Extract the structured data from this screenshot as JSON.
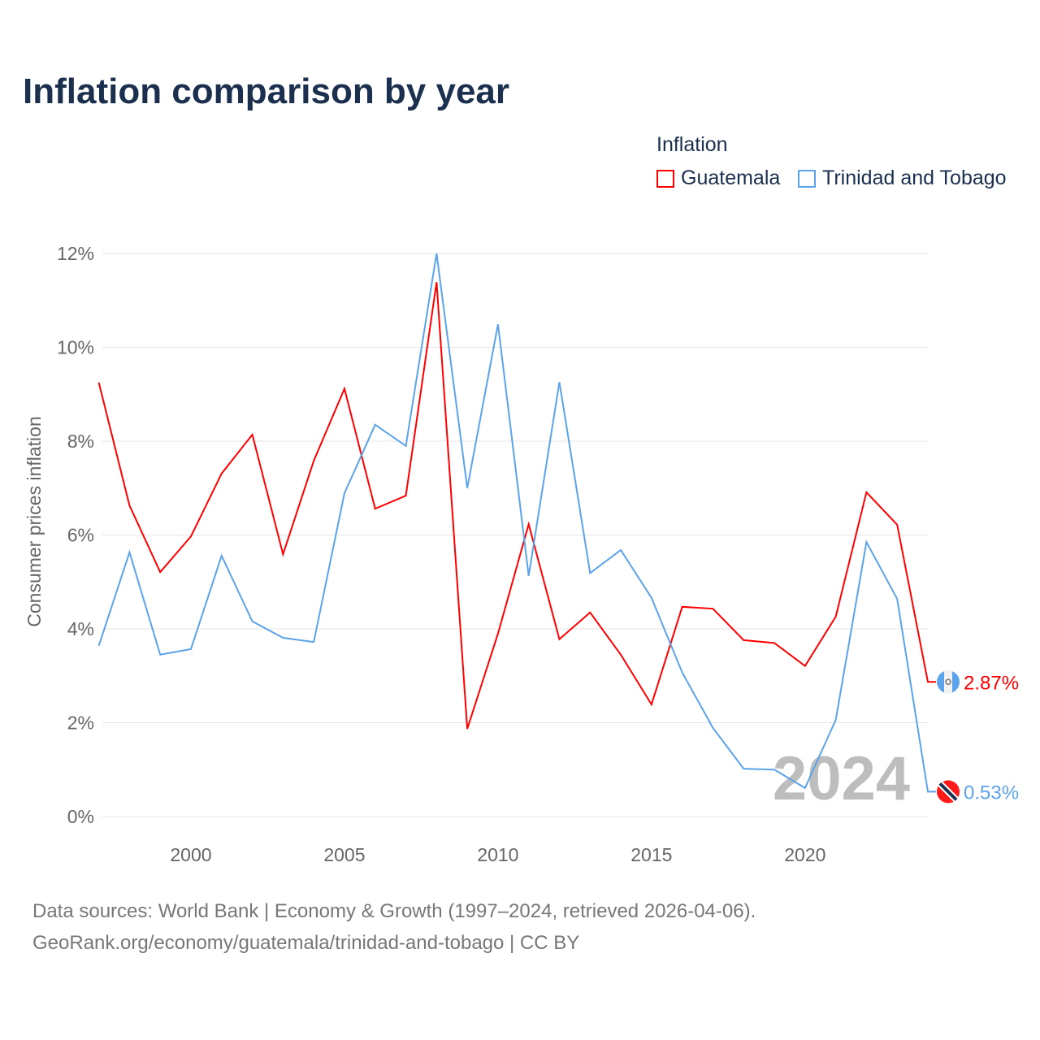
{
  "title": "Inflation comparison by year",
  "legend_title": "Inflation",
  "footer": {
    "line1": "Data sources: World Bank | Economy & Growth (1997–2024, retrieved 2026-04-06).",
    "line2": "GeoRank.org/economy/guatemala/trinidad-and-tobago | CC BY"
  },
  "chart_data": {
    "type": "line",
    "title": "Inflation comparison by year",
    "ylabel": "Consumer prices inflation",
    "xlabel": "",
    "x": [
      1997,
      1998,
      1999,
      2000,
      2001,
      2002,
      2003,
      2004,
      2005,
      2006,
      2007,
      2008,
      2009,
      2010,
      2011,
      2012,
      2013,
      2014,
      2015,
      2016,
      2017,
      2018,
      2019,
      2020,
      2021,
      2022,
      2023,
      2024
    ],
    "xlim": [
      1997,
      2024
    ],
    "ylim": [
      0,
      12
    ],
    "xticks": [
      "2000",
      "2005",
      "2010",
      "2015",
      "2020"
    ],
    "yticks": [
      "0%",
      "2%",
      "4%",
      "6%",
      "8%",
      "10%",
      "12%"
    ],
    "grid": true,
    "legend_position": "top-right",
    "watermark": "2024",
    "series": [
      {
        "name": "Guatemala",
        "color": "#ff0000",
        "end_label": "2.87%",
        "values": [
          9.25,
          6.63,
          5.21,
          5.97,
          7.31,
          8.14,
          5.59,
          7.58,
          9.12,
          6.56,
          6.84,
          11.39,
          1.87,
          3.9,
          6.23,
          3.78,
          4.35,
          3.45,
          2.39,
          4.47,
          4.43,
          3.76,
          3.7,
          3.21,
          4.26,
          6.91,
          6.22,
          2.87
        ]
      },
      {
        "name": "Trinidad and Tobago",
        "color": "#5ba3ea",
        "end_label": "0.53%",
        "values": [
          3.64,
          5.63,
          3.45,
          3.57,
          5.56,
          4.16,
          3.81,
          3.72,
          6.89,
          8.35,
          7.9,
          12.0,
          7.0,
          10.49,
          5.13,
          9.26,
          5.19,
          5.68,
          4.66,
          3.07,
          1.89,
          1.02,
          1.0,
          0.61,
          2.06,
          5.85,
          4.64,
          0.53
        ]
      }
    ]
  }
}
